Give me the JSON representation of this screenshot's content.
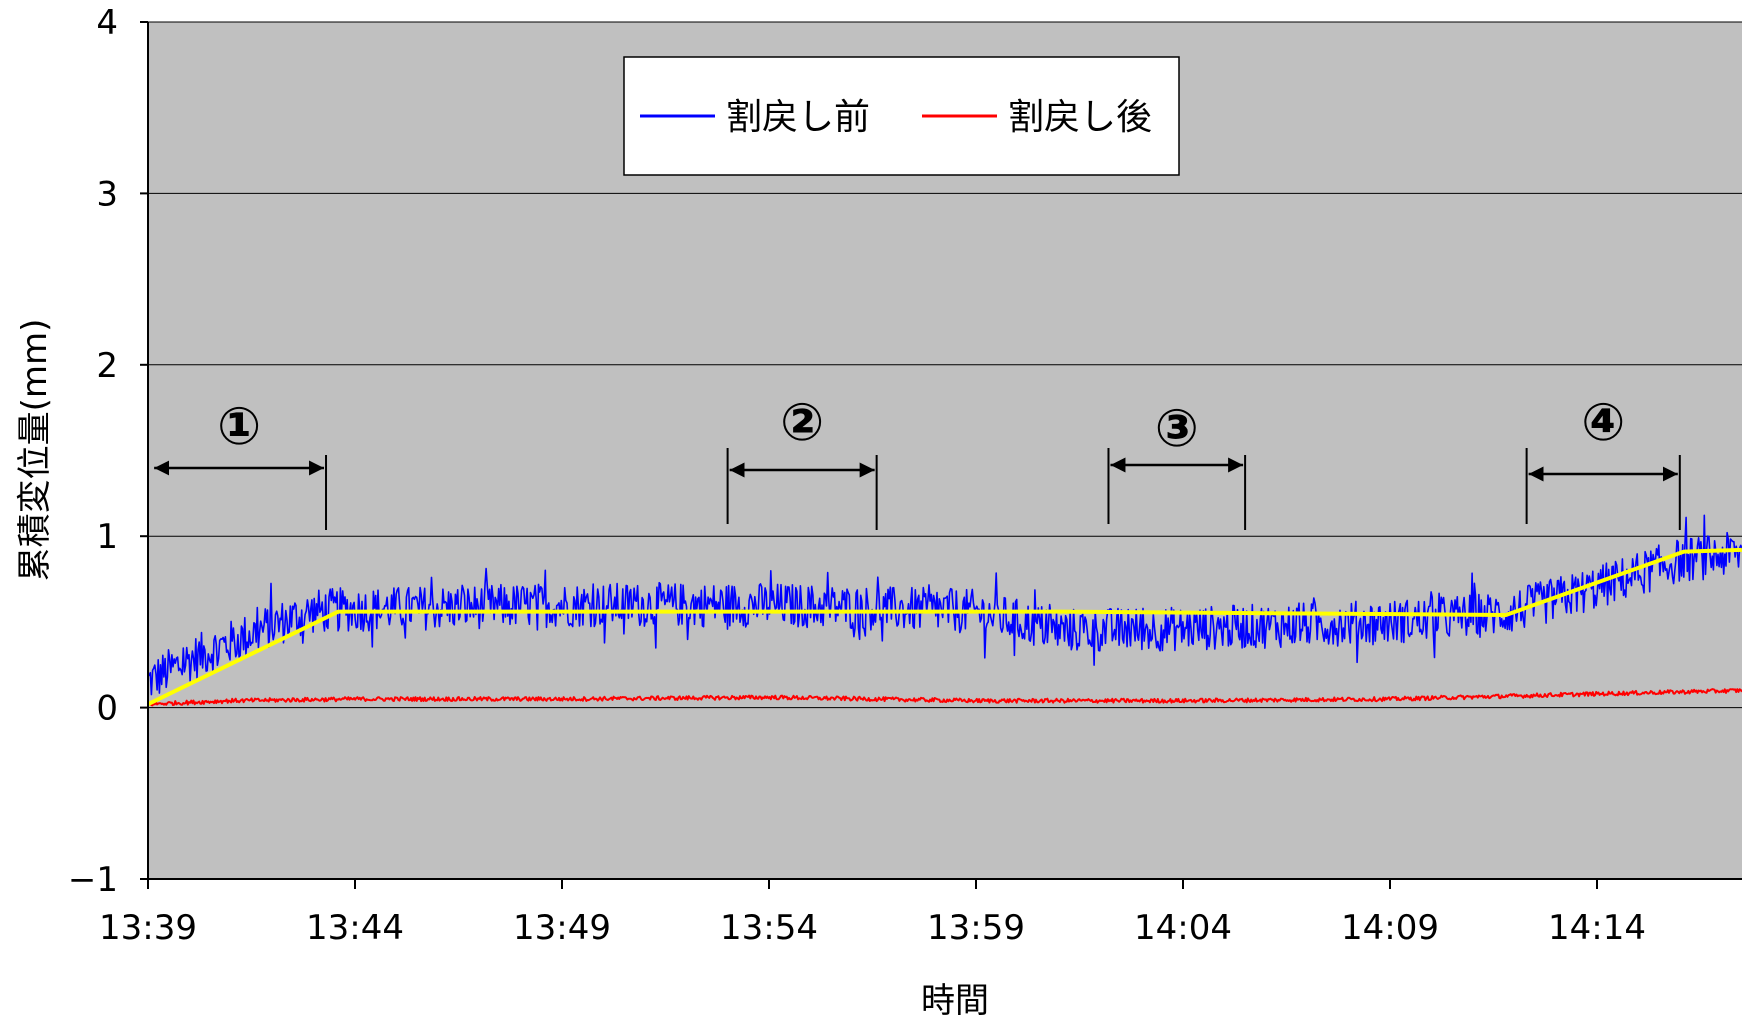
{
  "chart_data": {
    "type": "line",
    "title": "",
    "xlabel": "時間",
    "ylabel": "累積変位量(mm)",
    "ylim": [
      -1,
      4
    ],
    "yticks": [
      "-1",
      "0",
      "1",
      "2",
      "3",
      "4"
    ],
    "xticks": [
      "13:39",
      "13:44",
      "13:49",
      "13:54",
      "13:59",
      "14:04",
      "14:09",
      "14:14"
    ],
    "xlim_minutes": [
      0,
      38.5
    ],
    "grid": "horizontal",
    "plot_background": "#c0c0c0",
    "legend_position": "top-center",
    "series": [
      {
        "name": "割戻し前",
        "color": "#0000ff",
        "noisy": true,
        "x_minutes": [
          0,
          1,
          2,
          3,
          4,
          4.6,
          10,
          15,
          20,
          22,
          25,
          30,
          32.8,
          35,
          37,
          38.5
        ],
        "values": [
          0.15,
          0.28,
          0.38,
          0.48,
          0.56,
          0.57,
          0.6,
          0.6,
          0.56,
          0.45,
          0.46,
          0.5,
          0.55,
          0.7,
          0.86,
          0.9
        ]
      },
      {
        "name": "割戻し後",
        "color": "#ff0000",
        "noisy": true,
        "x_minutes": [
          0,
          2,
          5,
          10,
          15,
          20,
          25,
          30,
          35,
          38.5
        ],
        "values": [
          0.02,
          0.04,
          0.05,
          0.05,
          0.06,
          0.04,
          0.04,
          0.05,
          0.08,
          0.1
        ]
      },
      {
        "name": "",
        "color": "#ffff00",
        "noisy": false,
        "x_minutes": [
          0,
          4.6,
          21.9,
          32.8,
          37.1,
          38.5
        ],
        "values": [
          0.02,
          0.56,
          0.56,
          0.54,
          0.91,
          0.92
        ]
      }
    ],
    "annotations": [
      {
        "label": "①",
        "x_start_minutes": 0.1,
        "x_end_minutes": 4.3
      },
      {
        "label": "②",
        "x_start_minutes": 14.0,
        "x_end_minutes": 17.6
      },
      {
        "label": "③",
        "x_start_minutes": 23.2,
        "x_end_minutes": 26.5
      },
      {
        "label": "④",
        "x_start_minutes": 33.3,
        "x_end_minutes": 37.0
      }
    ]
  }
}
